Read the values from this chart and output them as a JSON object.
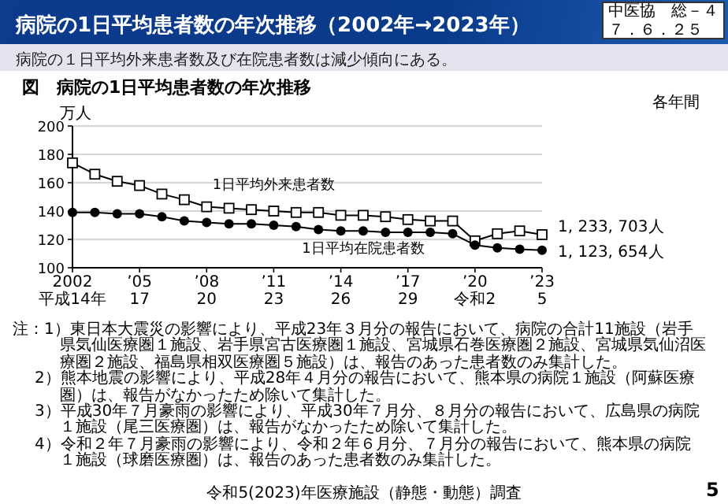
{
  "chart_data": {
    "type": "line",
    "title": "病院の1日平均患者数の年次推移（2002年→2023年）",
    "subtitle": "病院の１日平均外来患者数及び在院患者数は減少傾向にある。",
    "ylabel": "万人",
    "categories": [
      "2002\n平成14年",
      null,
      null,
      "’05\n17",
      null,
      null,
      "’08\n20",
      null,
      null,
      "’11\n23",
      null,
      null,
      "’14\n26",
      null,
      null,
      "’17\n29",
      null,
      null,
      "’20\n令和2",
      null,
      null,
      "’23\n5"
    ],
    "series": [
      {
        "name": "1日平均外来患者数",
        "color": "#000000",
        "marker": "square",
        "values": [
          174,
          166,
          161,
          158,
          152,
          148,
          143,
          142,
          141,
          140,
          139,
          139,
          137,
          137,
          136,
          134,
          133,
          133,
          119,
          124,
          126,
          123.3703
        ]
      },
      {
        "name": "1日平均在院患者数",
        "color": "#000000",
        "marker": "circle",
        "values": [
          139,
          139,
          138,
          138,
          136,
          133,
          132,
          131,
          131,
          130,
          129,
          127,
          126,
          126,
          125,
          125,
          125,
          124,
          116,
          114,
          113,
          112.3654
        ]
      }
    ],
    "ylim": [
      100,
      200
    ],
    "yticks": [
      100,
      120,
      140,
      160,
      180,
      200
    ],
    "grid": "y",
    "legend": false,
    "line_style": "solid",
    "annotations": [
      "中医協　総－４",
      "７．６．２５",
      "図　病院の1日平均患者数の年次推移",
      "各年間",
      "注：1）東日本大震災の影響により、平成23年３月分の報告において、病院の合計11施設（岩手県気仙医療圏１施設、岩手県宮古医療圏１施設、宮城県石巻医療圏２施設、宮城県気仙沼医療圏２施設、福島県相双医療圏５施設）は、報告のあった患者数のみ集計した。",
      "2）熊本地震の影響により、平成28年４月分の報告において、熊本県の病院１施設（阿蘇医療圏）は、報告がなかったため除いて集計した。",
      "3）平成30年７月豪雨の影響により、平成30年７月分、８月分の報告において、広島県の病院１施設（尾三医療圏）は、報告がなかったため除いて集計した。",
      "4）令和２年７月豪雨の影響により、令和２年６月分、７月分の報告において、熊本県の病院１施設（球磨医療圏）は、報告のあった患者数のみ集計した。",
      "令和5(2023)年医療施設（静態・動態）調査",
      "5",
      "1, 233, 703人",
      "1, 123, 654人"
    ]
  }
}
